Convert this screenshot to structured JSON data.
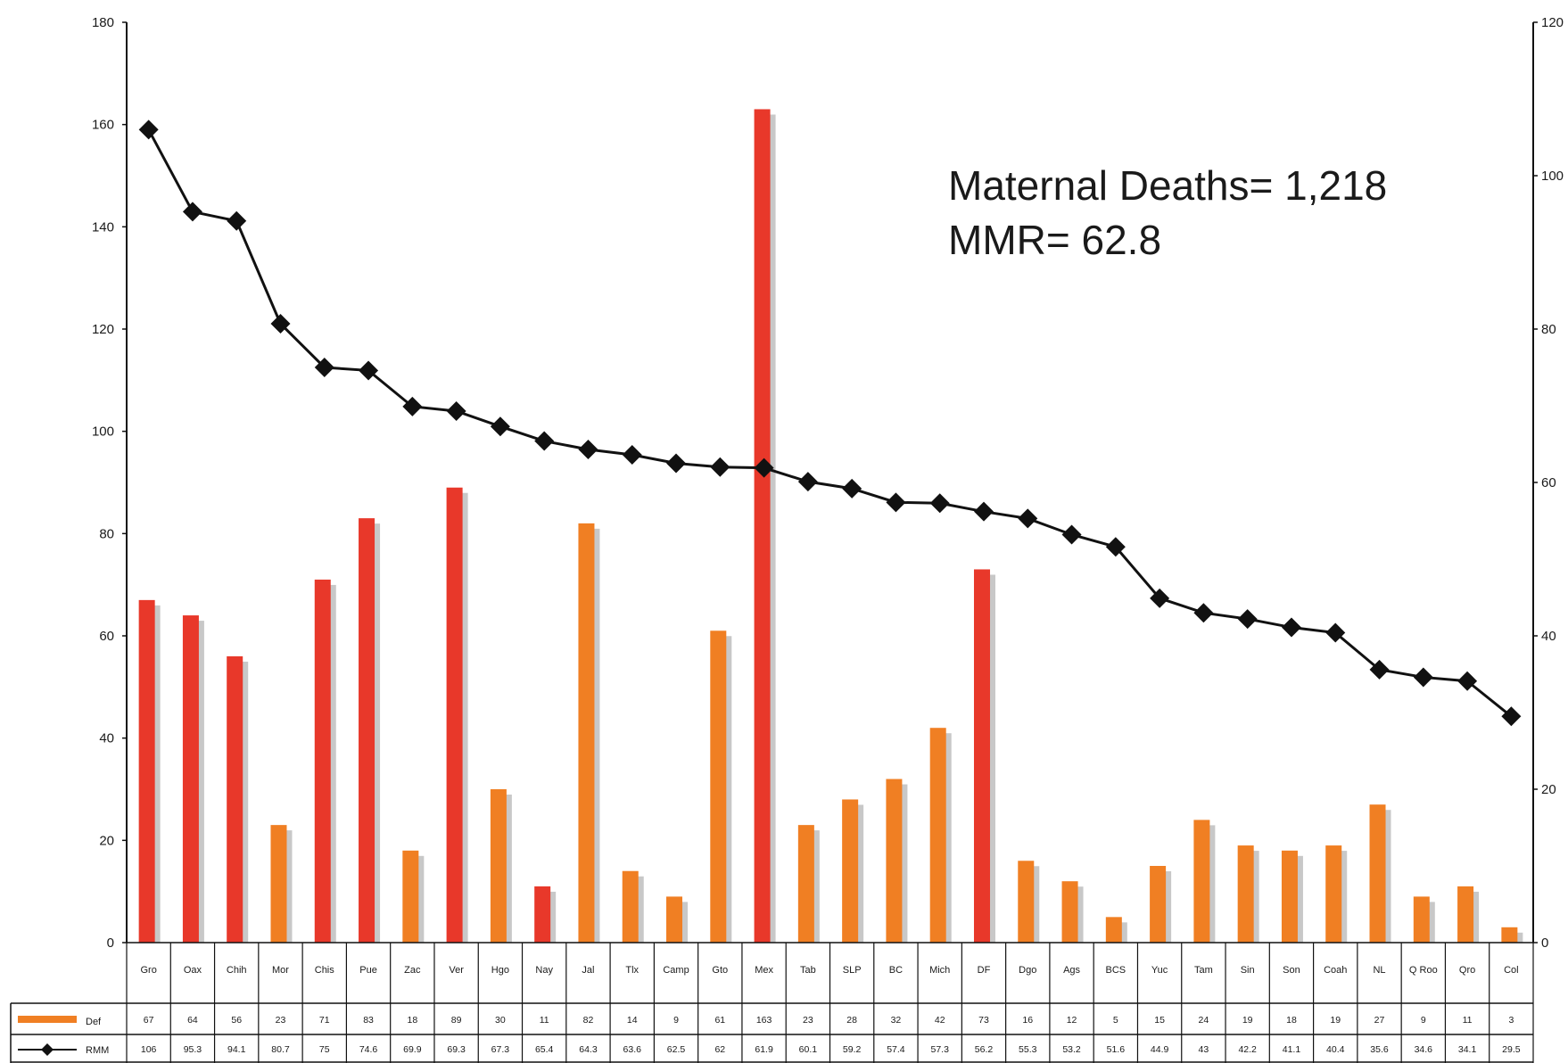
{
  "chart_data": {
    "type": "bar",
    "categories": [
      "Gro",
      "Oax",
      "Chih",
      "Mor",
      "Chis",
      "Pue",
      "Zac",
      "Ver",
      "Hgo",
      "Nay",
      "Jal",
      "Tlx",
      "Camp",
      "Gto",
      "Mex",
      "Tab",
      "SLP",
      "BC",
      "Mich",
      "DF",
      "Dgo",
      "Ags",
      "BCS",
      "Yuc",
      "Tam",
      "Sin",
      "Son",
      "Coah",
      "NL",
      "Q Roo",
      "Qro",
      "Col"
    ],
    "series": [
      {
        "name": "Def",
        "axis": "left",
        "type": "bar",
        "values": [
          67,
          64,
          56,
          23,
          71,
          83,
          18,
          89,
          30,
          11,
          82,
          14,
          9,
          61,
          163,
          23,
          28,
          32,
          42,
          73,
          16,
          12,
          5,
          15,
          24,
          19,
          18,
          19,
          27,
          9,
          11,
          3
        ],
        "highlighted": [
          true,
          true,
          true,
          false,
          true,
          true,
          false,
          true,
          false,
          true,
          false,
          false,
          false,
          false,
          true,
          false,
          false,
          false,
          false,
          true,
          false,
          false,
          false,
          false,
          false,
          false,
          false,
          false,
          false,
          false,
          false,
          false
        ]
      },
      {
        "name": "RMM",
        "axis": "right",
        "type": "line",
        "values": [
          106,
          95.3,
          94.1,
          80.7,
          75,
          74.6,
          69.9,
          69.3,
          67.3,
          65.4,
          64.3,
          63.6,
          62.5,
          62,
          61.9,
          60.1,
          59.2,
          57.4,
          57.3,
          56.2,
          55.3,
          53.2,
          51.6,
          44.9,
          43,
          42.2,
          41.1,
          40.4,
          35.6,
          34.6,
          34.1,
          29.5
        ]
      }
    ],
    "y_left": {
      "ylim": [
        0,
        180
      ],
      "ticks": [
        0,
        20,
        40,
        60,
        80,
        100,
        120,
        140,
        160,
        180
      ]
    },
    "y_right": {
      "ylim": [
        0,
        120
      ],
      "ticks": [
        0,
        20,
        40,
        60,
        80,
        100,
        120
      ]
    },
    "annotation": [
      "Maternal Deaths= 1,218",
      "MMR= 62.8"
    ],
    "colors": {
      "bar_red": "#e8382a",
      "bar_orange": "#f07f23",
      "bar_shadow": "#c8c8c8",
      "line": "#111111"
    },
    "grid": false,
    "legend": "table-bottom-left"
  }
}
